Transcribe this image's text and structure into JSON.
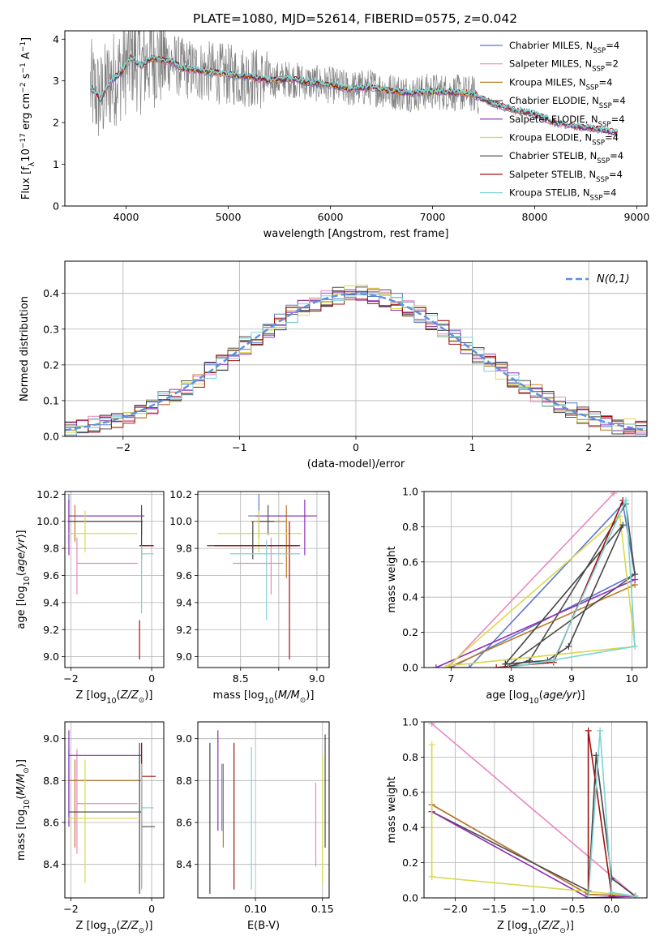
{
  "figure": {
    "title": "PLATE=1080, MJD=52614, FIBERID=0575, z=0.042"
  },
  "colors": {
    "data_spectrum": "#808080",
    "gaussian": "#5e8fe0",
    "models": [
      "#5b79c9",
      "#ea86c0",
      "#bd7a28",
      "#4d4d4d",
      "#8e2fb5",
      "#d9d94c",
      "#444444",
      "#a01010",
      "#7dd3d3"
    ]
  },
  "models": [
    {
      "name": "Chabrier MILES",
      "nssp": "4"
    },
    {
      "name": "Salpeter MILES",
      "nssp": "2"
    },
    {
      "name": "Kroupa MILES",
      "nssp": "4"
    },
    {
      "name": "Chabrier ELODIE",
      "nssp": "4"
    },
    {
      "name": "Salpeter ELODIE",
      "nssp": "4"
    },
    {
      "name": "Kroupa ELODIE",
      "nssp": "4"
    },
    {
      "name": "Chabrier STELIB",
      "nssp": "4"
    },
    {
      "name": "Salpeter STELIB",
      "nssp": "4"
    },
    {
      "name": "Kroupa STELIB",
      "nssp": "4"
    }
  ],
  "chart_data": [
    {
      "id": "spectrum",
      "type": "line",
      "xlabel": "wavelength [Angstrom, rest frame]",
      "ylabel": "Flux [f",
      "xlim": [
        3400,
        9100
      ],
      "ylim": [
        0,
        4.2
      ],
      "xticks": [
        4000,
        5000,
        6000,
        7000,
        8000,
        9000
      ],
      "yticks": [
        0,
        1,
        2,
        3,
        4
      ],
      "grid": false,
      "legend": "right",
      "continuum": {
        "x": [
          3650,
          3750,
          3850,
          3950,
          4050,
          4150,
          4250,
          4350,
          4450,
          4550,
          4700,
          4850,
          5000,
          5200,
          5400,
          5600,
          5800,
          6000,
          6200,
          6400,
          6600,
          6800,
          7000,
          7200,
          7400,
          7600,
          7800,
          8000,
          8200,
          8400,
          8600,
          8800
        ],
        "y": [
          2.85,
          2.55,
          3.0,
          3.2,
          3.55,
          3.35,
          3.55,
          3.5,
          3.45,
          3.3,
          3.25,
          3.2,
          3.15,
          3.1,
          3.0,
          3.05,
          2.95,
          2.9,
          2.8,
          2.85,
          2.75,
          2.7,
          2.75,
          2.72,
          2.68,
          2.45,
          2.3,
          2.2,
          2.0,
          1.9,
          1.85,
          1.75
        ]
      }
    },
    {
      "id": "residuals",
      "type": "line",
      "xlabel": "(data-model)/error",
      "ylabel": "Normed distribution",
      "xlim": [
        -2.5,
        2.5
      ],
      "ylim": [
        0,
        0.49
      ],
      "xticks": [
        -2,
        -1,
        0,
        1,
        2
      ],
      "yticks": [
        0.0,
        0.1,
        0.2,
        0.3,
        0.4
      ],
      "grid": true,
      "legend": "top-right",
      "gaussian_label": "N(0,1)",
      "bin_width": 0.1
    },
    {
      "id": "age-vs-Z",
      "type": "scatter",
      "xlabel": "Z [log",
      "ylabel": "age  [log",
      "xlim": [
        -2.15,
        0.3
      ],
      "ylim": [
        8.92,
        10.22
      ],
      "xticks": [
        -2,
        0
      ],
      "yticks": [
        9.0,
        9.2,
        9.4,
        9.6,
        9.8,
        10.0,
        10.2
      ],
      "grid": true,
      "points": [
        {
          "m": 0,
          "x": -2.05,
          "y": 10.04,
          "x0": -2.06,
          "x1": -0.2,
          "y0": 9.88,
          "y1": 10.2
        },
        {
          "m": 1,
          "x": -1.85,
          "y": 9.69,
          "x0": -1.85,
          "x1": -0.35,
          "y0": 9.46,
          "y1": 9.88
        },
        {
          "m": 2,
          "x": -1.9,
          "y": 10.0,
          "x0": -2.06,
          "x1": -0.28,
          "y0": 9.85,
          "y1": 10.12
        },
        {
          "m": 3,
          "x": -0.25,
          "y": 10.0,
          "x0": -2.08,
          "x1": -0.22,
          "y0": 9.9,
          "y1": 10.12
        },
        {
          "m": 4,
          "x": -2.05,
          "y": 10.04,
          "x0": -2.06,
          "x1": -0.18,
          "y0": 9.75,
          "y1": 10.16
        },
        {
          "m": 5,
          "x": -1.65,
          "y": 9.91,
          "x0": -2.06,
          "x1": -0.35,
          "y0": 9.77,
          "y1": 10.08
        },
        {
          "m": 6,
          "x": -0.25,
          "y": 9.82,
          "x0": -0.3,
          "x1": 0.05,
          "y0": 9.72,
          "y1": 10.0
        },
        {
          "m": 7,
          "x": -0.3,
          "y": 9.82,
          "x0": -0.3,
          "x1": 0.05,
          "y0": 8.98,
          "y1": 9.27
        },
        {
          "m": 8,
          "x": -0.25,
          "y": 9.76,
          "x0": -0.25,
          "x1": 0.05,
          "y0": 9.32,
          "y1": 9.82
        }
      ]
    },
    {
      "id": "age-vs-mass",
      "type": "scatter",
      "xlabel": "mass [log",
      "ylabel": "",
      "xlim": [
        8.22,
        9.08
      ],
      "ylim": [
        8.92,
        10.22
      ],
      "xticks": [
        8.5,
        8.75,
        9.0
      ],
      "xticklabels": [
        "8.5",
        "",
        "9.0"
      ],
      "yticks": [
        9.0,
        9.2,
        9.4,
        9.6,
        9.8,
        10.0,
        10.2
      ],
      "grid": true,
      "points": [
        {
          "m": 0,
          "x": 8.62,
          "y": 10.04,
          "x0": 8.55,
          "x1": 8.95,
          "y0": 9.88,
          "y1": 10.2
        },
        {
          "m": 1,
          "x": 8.7,
          "y": 9.69,
          "x0": 8.45,
          "x1": 8.78,
          "y0": 9.46,
          "y1": 9.88
        },
        {
          "m": 2,
          "x": 8.8,
          "y": 10.0,
          "x0": 8.57,
          "x1": 8.8,
          "y0": 9.58,
          "y1": 10.12
        },
        {
          "m": 3,
          "x": 8.68,
          "y": 10.0,
          "x0": 8.62,
          "x1": 8.72,
          "y0": 9.9,
          "y1": 10.12
        },
        {
          "m": 4,
          "x": 8.92,
          "y": 10.04,
          "x0": 8.6,
          "x1": 9.0,
          "y0": 9.75,
          "y1": 10.16
        },
        {
          "m": 5,
          "x": 8.62,
          "y": 9.91,
          "x0": 8.35,
          "x1": 8.9,
          "y0": 9.77,
          "y1": 10.08
        },
        {
          "m": 6,
          "x": 8.58,
          "y": 9.82,
          "x0": 8.28,
          "x1": 8.89,
          "y0": 9.72,
          "y1": 10.0
        },
        {
          "m": 7,
          "x": 8.82,
          "y": 9.82,
          "x0": 8.33,
          "x1": 8.88,
          "y0": 8.98,
          "y1": 10.0
        },
        {
          "m": 8,
          "x": 8.67,
          "y": 9.76,
          "x0": 8.43,
          "x1": 8.89,
          "y0": 9.27,
          "y1": 9.86
        }
      ]
    },
    {
      "id": "weight-vs-age",
      "type": "line",
      "xlabel": "age  [log",
      "ylabel": "mass weight",
      "xlim": [
        6.55,
        10.25
      ],
      "ylim": [
        0,
        1.0
      ],
      "xticks": [
        7,
        8,
        9,
        10
      ],
      "yticks": [
        0.0,
        0.2,
        0.4,
        0.6,
        0.8,
        1.0
      ],
      "grid": true,
      "series": [
        {
          "m": 0,
          "x": [
            7.0,
            7.3,
            9.85,
            10.05,
            7.0
          ],
          "y": [
            0.0,
            0.0,
            0.93,
            0.53,
            0.0
          ]
        },
        {
          "m": 1,
          "x": [
            6.95,
            9.7
          ],
          "y": [
            0.0,
            0.99
          ]
        },
        {
          "m": 2,
          "x": [
            6.95,
            10.05
          ],
          "y": [
            0.0,
            0.47
          ]
        },
        {
          "m": 3,
          "x": [
            7.9,
            8.3,
            9.9,
            10.05,
            7.9
          ],
          "y": [
            0.0,
            0.04,
            0.93,
            0.53,
            0.0
          ]
        },
        {
          "m": 4,
          "x": [
            6.75,
            10.05
          ],
          "y": [
            0.0,
            0.5
          ]
        },
        {
          "m": 5,
          "x": [
            6.95,
            9.8,
            10.05,
            6.95
          ],
          "y": [
            0.01,
            0.86,
            0.12,
            0.01
          ]
        },
        {
          "m": 6,
          "x": [
            7.9,
            8.6,
            8.95,
            9.85,
            7.9
          ],
          "y": [
            0.02,
            0.04,
            0.12,
            0.81,
            0.02
          ]
        },
        {
          "m": 7,
          "x": [
            7.75,
            8.7,
            9.85
          ],
          "y": [
            0.0,
            0.03,
            0.95
          ]
        },
        {
          "m": 8,
          "x": [
            7.95,
            8.7,
            9.9,
            10.05,
            7.95
          ],
          "y": [
            0.0,
            0.04,
            0.95,
            0.12,
            0.0
          ]
        }
      ]
    },
    {
      "id": "mass-vs-Z",
      "type": "scatter",
      "xlabel": "Z [log",
      "ylabel": "mass [log",
      "xlim": [
        -2.15,
        0.3
      ],
      "ylim": [
        8.24,
        9.08
      ],
      "xticks": [
        -2,
        0
      ],
      "yticks": [
        8.4,
        8.6,
        8.8,
        9.0
      ],
      "grid": true,
      "points": [
        {
          "m": 0,
          "x": -2.05,
          "y": 8.8,
          "x0": -2.06,
          "x1": -0.25,
          "y0": 8.62,
          "y1": 8.95
        },
        {
          "m": 1,
          "x": -1.85,
          "y": 8.69,
          "x0": -1.85,
          "x1": -0.35,
          "y0": 8.45,
          "y1": 8.95
        },
        {
          "m": 2,
          "x": -1.9,
          "y": 8.8,
          "x0": -2.06,
          "x1": -0.28,
          "y0": 8.48,
          "y1": 8.9
        },
        {
          "m": 3,
          "x": -0.25,
          "y": 8.58,
          "x0": -0.25,
          "x1": 0.08,
          "y0": 8.42,
          "y1": 8.98
        },
        {
          "m": 4,
          "x": -2.05,
          "y": 8.92,
          "x0": -2.06,
          "x1": -0.25,
          "y0": 8.58,
          "y1": 9.04
        },
        {
          "m": 5,
          "x": -1.65,
          "y": 8.62,
          "x0": -2.06,
          "x1": -0.35,
          "y0": 8.31,
          "y1": 8.9
        },
        {
          "m": 6,
          "x": -0.3,
          "y": 8.65,
          "x0": -2.06,
          "x1": -0.25,
          "y0": 8.26,
          "y1": 8.98
        },
        {
          "m": 7,
          "x": -0.25,
          "y": 8.82,
          "x0": -0.25,
          "x1": 0.1,
          "y0": 8.29,
          "y1": 8.98
        },
        {
          "m": 8,
          "x": -0.25,
          "y": 8.67,
          "x0": -0.25,
          "x1": 0.05,
          "y0": 8.28,
          "y1": 8.88
        }
      ]
    },
    {
      "id": "mass-vs-EBV",
      "type": "scatter",
      "xlabel": "E(B-V)",
      "ylabel": "",
      "xlim": [
        0.057,
        0.155
      ],
      "ylim": [
        8.24,
        9.08
      ],
      "xticks": [
        0.1,
        0.15
      ],
      "xticklabels": [
        "0.10",
        "0.15"
      ],
      "yticks": [
        8.4,
        8.6,
        8.8,
        9.0
      ],
      "grid": true,
      "points": [
        {
          "m": 0,
          "x": 0.075,
          "y": 8.7,
          "y0": 8.56,
          "y1": 8.88
        },
        {
          "m": 1,
          "x": 0.145,
          "y": 8.6,
          "y0": 8.39,
          "y1": 8.79
        },
        {
          "m": 2,
          "x": 0.076,
          "y": 8.7,
          "y0": 8.48,
          "y1": 8.88
        },
        {
          "m": 3,
          "x": 0.152,
          "y": 8.7,
          "y0": 8.48,
          "y1": 9.02
        },
        {
          "m": 4,
          "x": 0.072,
          "y": 8.9,
          "y0": 8.56,
          "y1": 9.04
        },
        {
          "m": 5,
          "x": 0.15,
          "y": 8.6,
          "y0": 8.31,
          "y1": 8.92
        },
        {
          "m": 6,
          "x": 0.066,
          "y": 8.6,
          "y0": 8.26,
          "y1": 8.98
        },
        {
          "m": 7,
          "x": 0.084,
          "y": 8.7,
          "y0": 8.28,
          "y1": 8.98
        },
        {
          "m": 8,
          "x": 0.097,
          "y": 8.6,
          "y0": 8.28,
          "y1": 8.96
        }
      ]
    },
    {
      "id": "weight-vs-Z",
      "type": "line",
      "xlabel": "Z [log",
      "ylabel": "mass weight",
      "xlim": [
        -2.4,
        0.45
      ],
      "ylim": [
        0,
        1.0
      ],
      "xticks": [
        -2.0,
        -1.5,
        -1.0,
        -0.5,
        0.0
      ],
      "yticks": [
        0.0,
        0.2,
        0.4,
        0.6,
        0.8,
        1.0
      ],
      "grid": true,
      "series": [
        {
          "m": 0,
          "x": [
            -2.3,
            -0.3,
            -0.3,
            0.3
          ],
          "y": [
            0.53,
            0.02,
            0.02,
            0.01
          ]
        },
        {
          "m": 1,
          "x": [
            -2.3,
            0.3
          ],
          "y": [
            0.99,
            0.01
          ]
        },
        {
          "m": 2,
          "x": [
            -2.3,
            -0.3,
            0.3
          ],
          "y": [
            0.53,
            0.02,
            0.01
          ]
        },
        {
          "m": 3,
          "x": [
            -2.3,
            -0.3
          ],
          "y": [
            0.49,
            0.04
          ]
        },
        {
          "m": 4,
          "x": [
            -2.3,
            -0.3,
            0.3
          ],
          "y": [
            0.49,
            0.0,
            0.01
          ]
        },
        {
          "m": 5,
          "x": [
            -2.3,
            -2.3,
            0.3,
            -2.3
          ],
          "y": [
            0.87,
            0.12,
            0.01,
            0.12
          ]
        },
        {
          "m": 6,
          "x": [
            -0.3,
            -0.2,
            0.0,
            0.3
          ],
          "y": [
            0.0,
            0.81,
            0.11,
            0.01
          ]
        },
        {
          "m": 7,
          "x": [
            -0.3,
            -0.3,
            0.0
          ],
          "y": [
            0.0,
            0.95,
            0.01
          ]
        },
        {
          "m": 8,
          "x": [
            -0.3,
            -0.15,
            0.0,
            0.3
          ],
          "y": [
            0.0,
            0.95,
            0.03,
            0.01
          ]
        }
      ]
    }
  ]
}
